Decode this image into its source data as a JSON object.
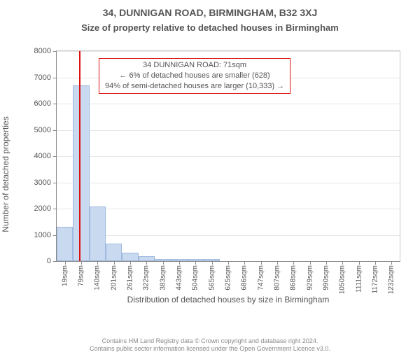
{
  "title_main": "34, DUNNIGAN ROAD, BIRMINGHAM, B32 3XJ",
  "title_sub": "Size of property relative to detached houses in Birmingham",
  "chart": {
    "type": "histogram",
    "y_axis_label": "Number of detached properties",
    "x_axis_label": "Distribution of detached houses by size in Birmingham",
    "ylim": [
      0,
      8000
    ],
    "ytick_step": 1000,
    "bar_fill": "#c9d9f0",
    "bar_border": "#9fb9df",
    "grid_color": "#e6e6e6",
    "axis_color": "#888888",
    "background": "#ffffff",
    "categories": [
      "19sqm",
      "79sqm",
      "140sqm",
      "201sqm",
      "261sqm",
      "322sqm",
      "383sqm",
      "443sqm",
      "504sqm",
      "565sqm",
      "625sqm",
      "686sqm",
      "747sqm",
      "807sqm",
      "868sqm",
      "929sqm",
      "990sqm",
      "1050sqm",
      "1111sqm",
      "1172sqm",
      "1232sqm"
    ],
    "values": [
      1300,
      6700,
      2070,
      680,
      330,
      180,
      90,
      80,
      80,
      80,
      0,
      0,
      0,
      0,
      0,
      0,
      0,
      0,
      0,
      0,
      0
    ],
    "bar_width": 1.0,
    "marker": {
      "position_sqm": 71,
      "color": "#dd1111",
      "lines": [
        "34 DUNNIGAN ROAD: 71sqm",
        "← 6% of detached houses are smaller (628)",
        "94% of semi-detached houses are larger (10,333) →"
      ]
    }
  },
  "footer_lines": [
    "Contains HM Land Registry data © Crown copyright and database right 2024.",
    "Contains public sector information licensed under the Open Government Licence v3.0."
  ],
  "fonts": {
    "title": 14,
    "subtitle": 13,
    "axis_label": 12,
    "tick": 11,
    "xtick": 10,
    "annot": 11,
    "footer": 9
  }
}
